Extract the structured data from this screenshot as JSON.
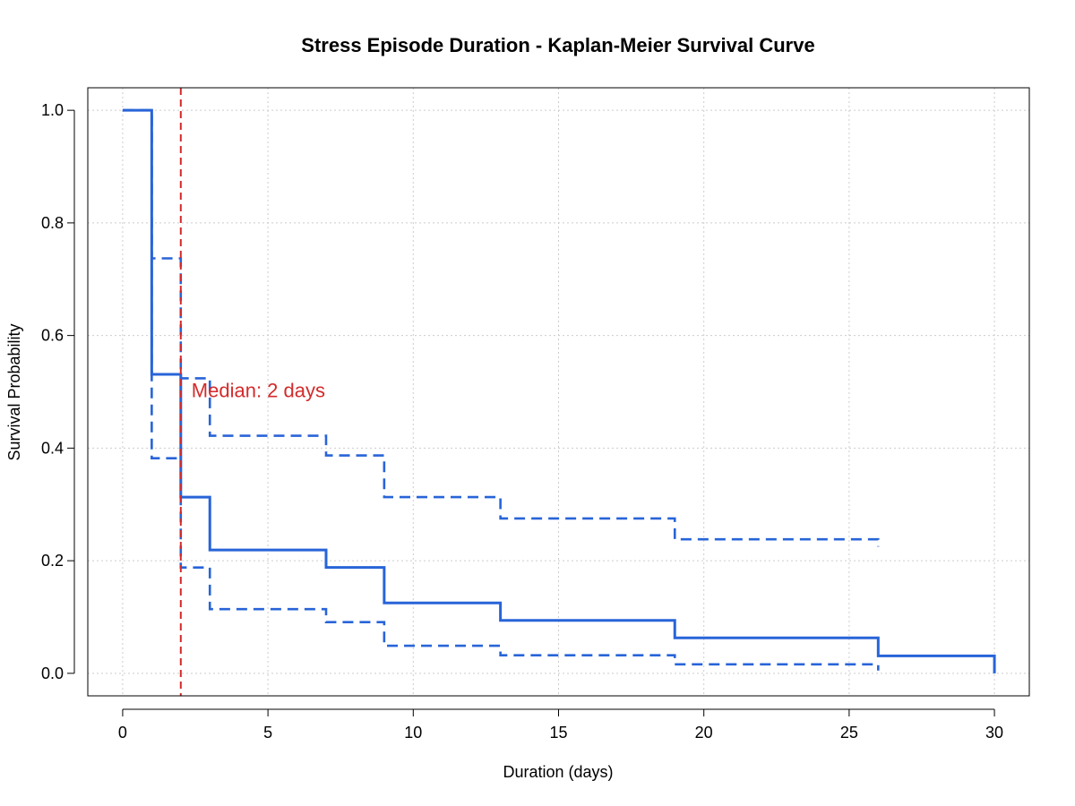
{
  "chart_data": {
    "type": "line",
    "title": "Stress Episode Duration - Kaplan-Meier Survival Curve",
    "xlabel": "Duration (days)",
    "ylabel": "Survival Probability",
    "xlim": [
      -1.2,
      31.2
    ],
    "ylim": [
      -0.04,
      1.04
    ],
    "x_ticks": [
      0,
      5,
      10,
      15,
      20,
      25,
      30
    ],
    "y_ticks": [
      0.0,
      0.2,
      0.4,
      0.6,
      0.8,
      1.0
    ],
    "x_tick_labels": [
      "0",
      "5",
      "10",
      "15",
      "20",
      "25",
      "30"
    ],
    "y_tick_labels": [
      "0.0",
      "0.2",
      "0.4",
      "0.6",
      "0.8",
      "1.0"
    ],
    "grid": true,
    "series": [
      {
        "role": "estimate",
        "style": "solid",
        "x": [
          0,
          1,
          2,
          3,
          7,
          9,
          13,
          19,
          26,
          30
        ],
        "y": [
          1.0,
          0.531,
          0.313,
          0.219,
          0.188,
          0.125,
          0.094,
          0.063,
          0.031,
          0.0
        ]
      },
      {
        "role": "upper-ci",
        "style": "dashed",
        "x": [
          0,
          1,
          2,
          3,
          7,
          9,
          13,
          19,
          26
        ],
        "y": [
          1.0,
          0.737,
          0.524,
          0.422,
          0.387,
          0.313,
          0.275,
          0.238,
          0.225
        ]
      },
      {
        "role": "lower-ci",
        "style": "dashed",
        "x": [
          0,
          1,
          2,
          3,
          7,
          9,
          13,
          19,
          26
        ],
        "y": [
          1.0,
          0.382,
          0.188,
          0.114,
          0.091,
          0.049,
          0.032,
          0.016,
          0.005
        ]
      }
    ],
    "median_line": {
      "x": 2,
      "label": "Median: 2 days"
    },
    "colors": {
      "curve": "#2864d8",
      "median": "#d42a2a",
      "grid": "#cccccc",
      "frame": "#000000"
    }
  }
}
